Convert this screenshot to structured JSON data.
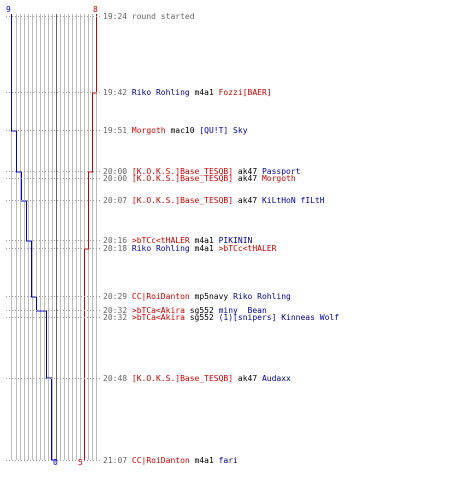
{
  "scoreboard": {
    "colors": {
      "blue": "#0000cc",
      "red": "#cc0000",
      "grid": "#bbbbbb",
      "midline": "#666666",
      "text_gray": "#666666"
    },
    "top": {
      "blue_count": "9",
      "red_count": "8"
    },
    "bottom": {
      "blue_count": "0",
      "red_count": "5"
    }
  },
  "chart_data": {
    "type": "line",
    "x_unit": "kills (count of alive players per team)",
    "y_unit": "time",
    "series": [
      {
        "team": "blue",
        "color": "#0000cc",
        "steps": [
          {
            "time": "19:24",
            "value": 9
          },
          {
            "time": "19:51",
            "value": 8
          },
          {
            "time": "20:00",
            "value": 7
          },
          {
            "time": "20:07",
            "value": 6
          },
          {
            "time": "20:16",
            "value": 5
          },
          {
            "time": "20:29",
            "value": 4
          },
          {
            "time": "20:32",
            "value": 2
          },
          {
            "time": "20:48",
            "value": 1
          },
          {
            "time": "21:07",
            "value": 0
          }
        ]
      },
      {
        "team": "red",
        "color": "#cc0000",
        "steps": [
          {
            "time": "19:24",
            "value": 8
          },
          {
            "time": "19:42",
            "value": 7
          },
          {
            "time": "20:00",
            "value": 6
          },
          {
            "time": "20:18",
            "value": 5
          }
        ]
      }
    ]
  },
  "events": [
    {
      "time": "19:24",
      "parts": [
        {
          "text": "round started",
          "color": "gray"
        }
      ]
    },
    {
      "time": "19:42",
      "parts": [
        {
          "text": "Riko Rohling",
          "color": "blue"
        },
        {
          "text": " m4a1 ",
          "color": "black"
        },
        {
          "text": "Fozzi[BAER]",
          "color": "red"
        }
      ]
    },
    {
      "time": "19:51",
      "parts": [
        {
          "text": "Morgoth",
          "color": "red"
        },
        {
          "text": " mac10 ",
          "color": "black"
        },
        {
          "text": "[QU!T] Sky",
          "color": "blue"
        }
      ]
    },
    {
      "time": "20:00",
      "parts": [
        {
          "text": "[K.O.K.S.]Base_TESQB]",
          "color": "red"
        },
        {
          "text": " ak47 ",
          "color": "black"
        },
        {
          "text": "Passport",
          "color": "blue"
        }
      ]
    },
    {
      "time": "20:00",
      "parts": [
        {
          "text": "[K.O.K.S.]Base_TESQB]",
          "color": "red"
        },
        {
          "text": " ak47 ",
          "color": "black"
        },
        {
          "text": "Morgoth",
          "color": "red"
        }
      ]
    },
    {
      "time": "20:07",
      "parts": [
        {
          "text": "[K.O.K.S.]Base_TESQB]",
          "color": "red"
        },
        {
          "text": " ak47 ",
          "color": "black"
        },
        {
          "text": "KiLtHoN fILtH",
          "color": "blue"
        }
      ]
    },
    {
      "time": "20:16",
      "parts": [
        {
          "text": ">bTCc<tHALER",
          "color": "red"
        },
        {
          "text": " m4a1 ",
          "color": "black"
        },
        {
          "text": "PIKININ",
          "color": "blue"
        }
      ]
    },
    {
      "time": "20:18",
      "parts": [
        {
          "text": "Riko Rohling",
          "color": "blue"
        },
        {
          "text": " m4a1 ",
          "color": "black"
        },
        {
          "text": ">bTCc<tHALER",
          "color": "red"
        }
      ]
    },
    {
      "time": "20:29",
      "parts": [
        {
          "text": "CC|RoiDanton",
          "color": "red"
        },
        {
          "text": " mp5navy ",
          "color": "black"
        },
        {
          "text": "Riko Rohling",
          "color": "blue"
        }
      ]
    },
    {
      "time": "20:32",
      "parts": [
        {
          "text": ">bTCa<Akira",
          "color": "red"
        },
        {
          "text": " sg552 ",
          "color": "black"
        },
        {
          "text": "miny  Bean",
          "color": "blue"
        }
      ]
    },
    {
      "time": "20:32",
      "parts": [
        {
          "text": ">bTCa<Akira",
          "color": "red"
        },
        {
          "text": " sg552 ",
          "color": "black"
        },
        {
          "text": "(1)[snipers] Kinneas Wolf",
          "color": "blue"
        }
      ]
    },
    {
      "time": "20:48",
      "parts": [
        {
          "text": "[K.O.K.S.]Base_TESQB]",
          "color": "red"
        },
        {
          "text": " ak47 ",
          "color": "black"
        },
        {
          "text": "Audaxx",
          "color": "blue"
        }
      ]
    },
    {
      "time": "21:07",
      "parts": [
        {
          "text": "CC|RoiDanton",
          "color": "red"
        },
        {
          "text": " m4a1 ",
          "color": "black"
        },
        {
          "text": "fari",
          "color": "blue"
        }
      ]
    }
  ]
}
